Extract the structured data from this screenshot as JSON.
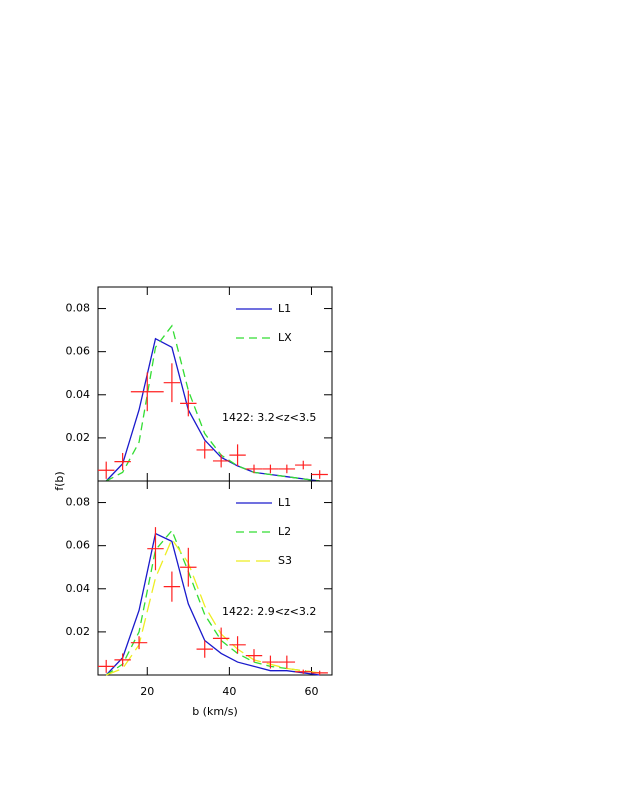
{
  "chart_data": [
    {
      "type": "line",
      "y_label": "f(b)",
      "annotation": "1422: 3.2<z<3.5",
      "xlim": [
        8,
        65
      ],
      "ylim": [
        0,
        0.09
      ],
      "xticks": [
        20,
        40,
        60
      ],
      "yticks": [
        0.02,
        0.04,
        0.06,
        0.08
      ],
      "legend": "upper right",
      "x": [
        10,
        14,
        18,
        22,
        26,
        30,
        34,
        38,
        42,
        46,
        50,
        54,
        58,
        62
      ],
      "series": [
        {
          "name": "L1",
          "color": "#1a1acc",
          "dash": "solid",
          "values": [
            0,
            0.008,
            0.033,
            0.066,
            0.062,
            0.033,
            0.019,
            0.011,
            0.007,
            0.004,
            0.003,
            0.002,
            0.001,
            0
          ]
        },
        {
          "name": "LX",
          "color": "#33dd33",
          "dash": "dashed",
          "values": [
            0,
            0.004,
            0.018,
            0.062,
            0.072,
            0.042,
            0.022,
            0.012,
            0.007,
            0.004,
            0.003,
            0.002,
            0.001,
            0
          ]
        }
      ],
      "points": {
        "color": "#ff2020",
        "x": [
          10,
          14,
          20,
          26,
          30,
          34,
          38,
          42,
          46,
          50,
          54,
          58,
          62
        ],
        "values": [
          0.005,
          0.009,
          0.0414,
          0.0456,
          0.036,
          0.0144,
          0.0093,
          0.012,
          0.0056,
          0.0056,
          0.0056,
          0.0074,
          0.003
        ],
        "xerr": [
          2,
          2,
          4,
          2,
          2,
          2,
          2,
          2,
          2,
          2,
          2,
          2,
          2
        ],
        "yerr": [
          0.004,
          0.004,
          0.009,
          0.009,
          0.006,
          0.004,
          0.003,
          0.005,
          0.002,
          0.002,
          0.002,
          0.002,
          0.002
        ]
      }
    },
    {
      "type": "line",
      "x_label": "b (km/s)",
      "annotation": "1422: 2.9<z<3.2",
      "xlim": [
        8,
        65
      ],
      "ylim": [
        0,
        0.09
      ],
      "xticks": [
        20,
        40,
        60
      ],
      "yticks": [
        0.02,
        0.04,
        0.06,
        0.08
      ],
      "legend": "upper right",
      "x": [
        10,
        14,
        18,
        22,
        26,
        30,
        34,
        38,
        42,
        46,
        50,
        54,
        58,
        62
      ],
      "series": [
        {
          "name": "L1",
          "color": "#1a1acc",
          "dash": "solid",
          "values": [
            0,
            0.008,
            0.03,
            0.0656,
            0.062,
            0.033,
            0.016,
            0.01,
            0.006,
            0.004,
            0.002,
            0.002,
            0.001,
            0
          ]
        },
        {
          "name": "L2",
          "color": "#33dd33",
          "dash": "dashed",
          "values": [
            0,
            0.005,
            0.02,
            0.058,
            0.067,
            0.048,
            0.028,
            0.016,
            0.01,
            0.006,
            0.004,
            0.003,
            0.002,
            0.001
          ]
        },
        {
          "name": "S3",
          "color": "#eeee22",
          "dash": "longdash",
          "values": [
            0,
            0.003,
            0.014,
            0.045,
            0.063,
            0.052,
            0.032,
            0.019,
            0.012,
            0.007,
            0.005,
            0.003,
            0.002,
            0.001
          ]
        }
      ],
      "points": {
        "color": "#ff2020",
        "x": [
          10,
          14,
          18,
          22,
          26,
          30,
          34,
          38,
          42,
          46,
          50,
          54,
          58,
          62
        ],
        "values": [
          0.004,
          0.007,
          0.015,
          0.0586,
          0.041,
          0.05,
          0.012,
          0.017,
          0.014,
          0.009,
          0.006,
          0.006,
          0.0015,
          0.001
        ],
        "xerr": [
          2,
          2,
          2,
          2,
          2,
          2,
          2,
          2,
          2,
          2,
          2,
          2,
          2,
          2
        ],
        "yerr": [
          0.003,
          0.003,
          0.003,
          0.01,
          0.007,
          0.009,
          0.004,
          0.005,
          0.004,
          0.003,
          0.003,
          0.003,
          0.001,
          0.001
        ]
      }
    }
  ]
}
